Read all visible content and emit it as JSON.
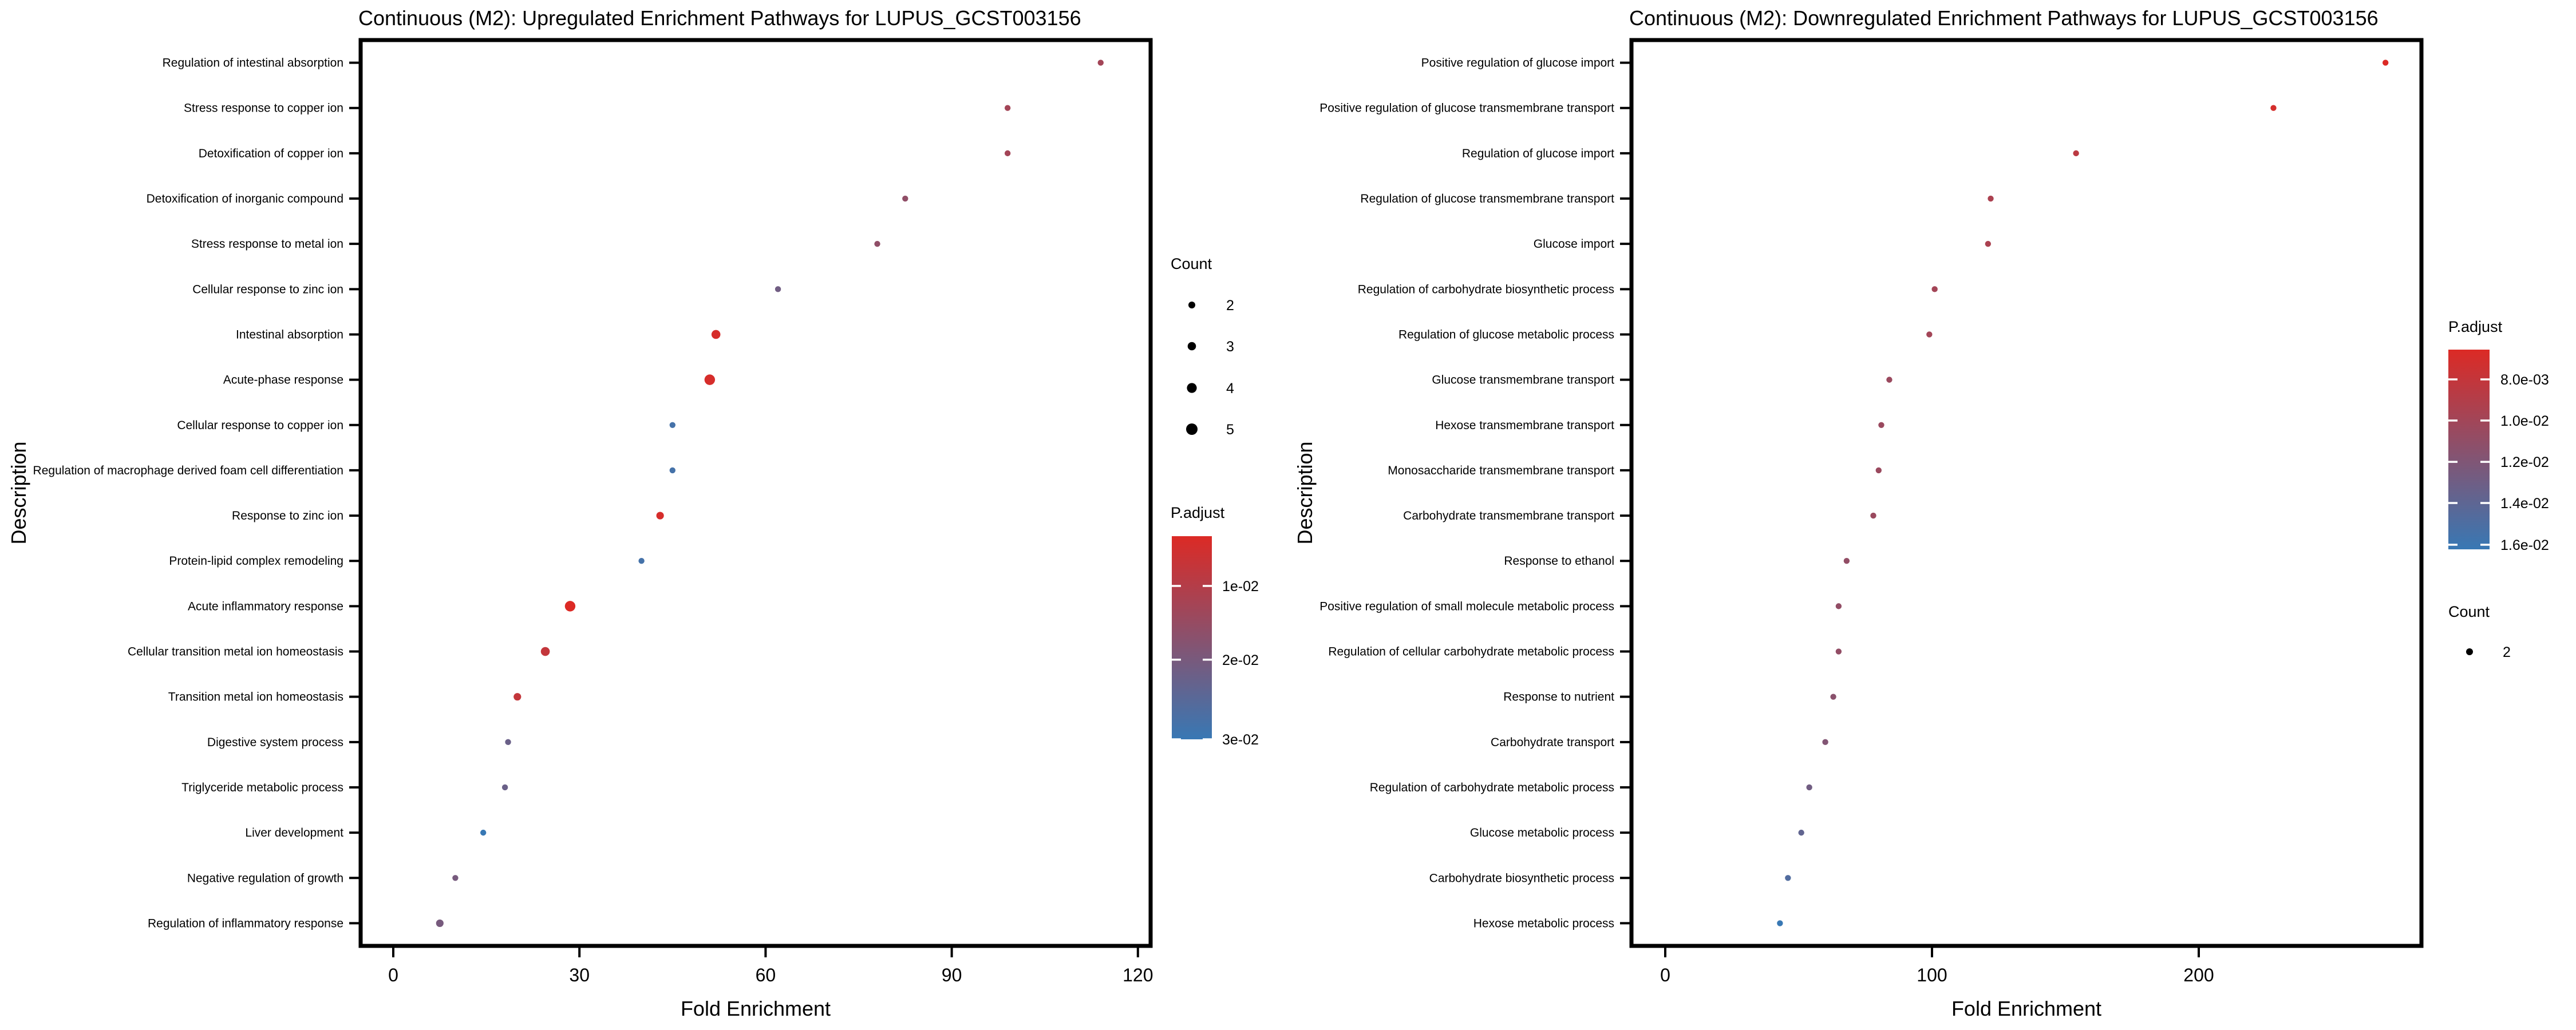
{
  "page": {
    "background_color": "#ffffff",
    "text_color": "#000000"
  },
  "chart_data": [
    {
      "type": "scatter",
      "title": "Continuous (M2): Upregulated Enrichment Pathways for LUPUS_GCST003156",
      "xlabel": "Fold Enrichment",
      "ylabel": "Description",
      "xlim": [
        -5,
        122
      ],
      "x_ticks": [
        0,
        30,
        60,
        90,
        120
      ],
      "grid": false,
      "legend_position": "right",
      "categories": [
        "Regulation of intestinal absorption",
        "Stress response to copper ion",
        "Detoxification of copper ion",
        "Detoxification of inorganic compound",
        "Stress response to metal ion",
        "Cellular response to zinc ion",
        "Intestinal absorption",
        "Acute-phase response",
        "Cellular response to copper ion",
        "Regulation of macrophage derived foam cell differentiation",
        "Response to zinc ion",
        "Protein-lipid complex remodeling",
        "Acute inflammatory response",
        "Cellular transition metal ion homeostasis",
        "Transition metal ion homeostasis",
        "Digestive system process",
        "Triglyceride metabolic process",
        "Liver development",
        "Negative regulation of growth",
        "Regulation of inflammatory response"
      ],
      "points": [
        {
          "fold_enrichment": 114,
          "count": 2,
          "p_adjust": 0.013
        },
        {
          "fold_enrichment": 99,
          "count": 2,
          "p_adjust": 0.013
        },
        {
          "fold_enrichment": 99,
          "count": 2,
          "p_adjust": 0.013
        },
        {
          "fold_enrichment": 82.5,
          "count": 2,
          "p_adjust": 0.016
        },
        {
          "fold_enrichment": 78,
          "count": 2,
          "p_adjust": 0.016
        },
        {
          "fold_enrichment": 62,
          "count": 2,
          "p_adjust": 0.021
        },
        {
          "fold_enrichment": 52,
          "count": 4,
          "p_adjust": 0.005
        },
        {
          "fold_enrichment": 51,
          "count": 5,
          "p_adjust": 0.005
        },
        {
          "fold_enrichment": 45,
          "count": 2,
          "p_adjust": 0.028
        },
        {
          "fold_enrichment": 45,
          "count": 2,
          "p_adjust": 0.028
        },
        {
          "fold_enrichment": 43,
          "count": 3,
          "p_adjust": 0.005
        },
        {
          "fold_enrichment": 40,
          "count": 2,
          "p_adjust": 0.028
        },
        {
          "fold_enrichment": 28.5,
          "count": 5,
          "p_adjust": 0.004
        },
        {
          "fold_enrichment": 24.5,
          "count": 4,
          "p_adjust": 0.008
        },
        {
          "fold_enrichment": 20,
          "count": 3,
          "p_adjust": 0.008
        },
        {
          "fold_enrichment": 18.5,
          "count": 2,
          "p_adjust": 0.022
        },
        {
          "fold_enrichment": 18,
          "count": 2,
          "p_adjust": 0.022
        },
        {
          "fold_enrichment": 14.5,
          "count": 2,
          "p_adjust": 0.03
        },
        {
          "fold_enrichment": 10,
          "count": 2,
          "p_adjust": 0.02
        },
        {
          "fold_enrichment": 7.5,
          "count": 3,
          "p_adjust": 0.02
        }
      ],
      "legend": {
        "count": {
          "title": "Count",
          "sizes": [
            2,
            3,
            4,
            5
          ]
        },
        "p_adjust": {
          "title": "P.adjust",
          "tick_labels": [
            "1e-02",
            "2e-02",
            "3e-02"
          ],
          "high_color": "#DC2A25",
          "low_color": "#3878B4",
          "range": [
            0.004,
            0.03
          ]
        }
      }
    },
    {
      "type": "scatter",
      "title": "Continuous (M2): Downregulated Enrichment Pathways for LUPUS_GCST003156",
      "xlabel": "Fold Enrichment",
      "ylabel": "Description",
      "xlim": [
        -12,
        283
      ],
      "x_ticks": [
        0,
        100,
        200
      ],
      "grid": false,
      "legend_position": "right",
      "categories": [
        "Positive regulation of glucose import",
        "Positive regulation of glucose transmembrane transport",
        "Regulation of glucose import",
        "Regulation of glucose transmembrane transport",
        "Glucose import",
        "Regulation of carbohydrate biosynthetic process",
        "Regulation of glucose metabolic process",
        "Glucose transmembrane transport",
        "Hexose transmembrane transport",
        "Monosaccharide transmembrane transport",
        "Carbohydrate transmembrane transport",
        "Response to ethanol",
        "Positive regulation of small molecule metabolic process",
        "Regulation of cellular carbohydrate metabolic process",
        "Response to nutrient",
        "Carbohydrate transport",
        "Regulation of carbohydrate metabolic process",
        "Glucose metabolic process",
        "Carbohydrate biosynthetic process",
        "Hexose metabolic process"
      ],
      "points": [
        {
          "fold_enrichment": 270,
          "count": 2,
          "p_adjust": 0.006
        },
        {
          "fold_enrichment": 228,
          "count": 2,
          "p_adjust": 0.0065
        },
        {
          "fold_enrichment": 154,
          "count": 2,
          "p_adjust": 0.008
        },
        {
          "fold_enrichment": 122,
          "count": 2,
          "p_adjust": 0.009
        },
        {
          "fold_enrichment": 121,
          "count": 2,
          "p_adjust": 0.009
        },
        {
          "fold_enrichment": 101,
          "count": 2,
          "p_adjust": 0.0095
        },
        {
          "fold_enrichment": 99,
          "count": 2,
          "p_adjust": 0.0095
        },
        {
          "fold_enrichment": 84,
          "count": 2,
          "p_adjust": 0.01
        },
        {
          "fold_enrichment": 81,
          "count": 2,
          "p_adjust": 0.01
        },
        {
          "fold_enrichment": 80,
          "count": 2,
          "p_adjust": 0.01
        },
        {
          "fold_enrichment": 78,
          "count": 2,
          "p_adjust": 0.01
        },
        {
          "fold_enrichment": 68,
          "count": 2,
          "p_adjust": 0.0105
        },
        {
          "fold_enrichment": 65,
          "count": 2,
          "p_adjust": 0.0105
        },
        {
          "fold_enrichment": 65,
          "count": 2,
          "p_adjust": 0.0105
        },
        {
          "fold_enrichment": 63,
          "count": 2,
          "p_adjust": 0.011
        },
        {
          "fold_enrichment": 60,
          "count": 2,
          "p_adjust": 0.0115
        },
        {
          "fold_enrichment": 54,
          "count": 2,
          "p_adjust": 0.0125
        },
        {
          "fold_enrichment": 51,
          "count": 2,
          "p_adjust": 0.0135
        },
        {
          "fold_enrichment": 46,
          "count": 2,
          "p_adjust": 0.0145
        },
        {
          "fold_enrichment": 43,
          "count": 2,
          "p_adjust": 0.016
        }
      ],
      "legend": {
        "count": {
          "title": "Count",
          "sizes": [
            2
          ]
        },
        "p_adjust": {
          "title": "P.adjust",
          "tick_labels": [
            "8.0e-03",
            "1.0e-02",
            "1.2e-02",
            "1.4e-02",
            "1.6e-02"
          ],
          "high_color": "#DC2A25",
          "low_color": "#3878B4",
          "range": [
            0.006,
            0.016
          ]
        }
      }
    }
  ]
}
